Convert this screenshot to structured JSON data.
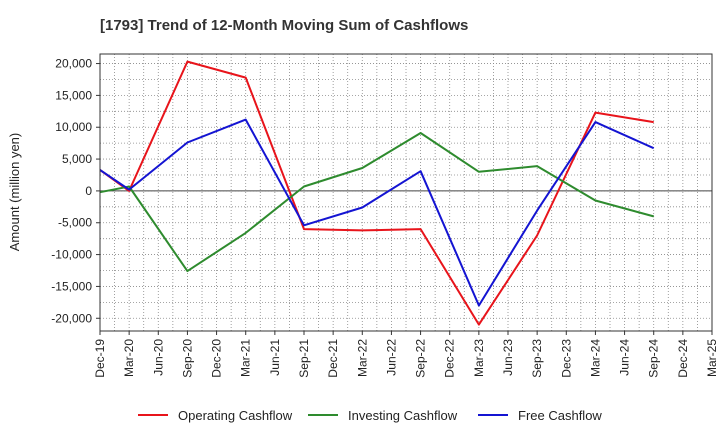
{
  "chart_data": {
    "type": "line",
    "title": "[1793]  Trend of 12-Month Moving Sum of Cashflows",
    "xlabel": "",
    "ylabel": "Amount (million yen)",
    "ylim": [
      -22000,
      21500
    ],
    "yticks": [
      20000,
      15000,
      10000,
      5000,
      0,
      -5000,
      -10000,
      -15000,
      -20000
    ],
    "ytick_labels": [
      "20,000",
      "15,000",
      "10,000",
      "5,000",
      "0",
      "-5,000",
      "-10,000",
      "-15,000",
      "-20,000"
    ],
    "categories": [
      "Dec-19",
      "Mar-20",
      "Jun-20",
      "Sep-20",
      "Dec-20",
      "Mar-21",
      "Jun-21",
      "Sep-21",
      "Dec-21",
      "Mar-22",
      "Jun-22",
      "Sep-22",
      "Dec-22",
      "Mar-23",
      "Jun-23",
      "Sep-23",
      "Dec-23",
      "Mar-24",
      "Jun-24",
      "Sep-24",
      "Dec-24",
      "Mar-25"
    ],
    "grid": true,
    "legend_position": "bottom",
    "series": [
      {
        "name": "Operating Cashflow",
        "color": "#e8141b",
        "values": [
          3300,
          0,
          null,
          20300,
          null,
          17800,
          null,
          -6000,
          null,
          -6200,
          null,
          -6000,
          null,
          -21000,
          null,
          -7000,
          null,
          12300,
          null,
          10800,
          null,
          null
        ]
      },
      {
        "name": "Investing Cashflow",
        "color": "#2e8b2e",
        "values": [
          -200,
          700,
          null,
          -12600,
          null,
          -6600,
          null,
          700,
          null,
          3600,
          null,
          9100,
          null,
          3000,
          null,
          3900,
          null,
          -1500,
          null,
          -4000,
          null,
          null
        ]
      },
      {
        "name": "Free Cashflow",
        "color": "#1414d2",
        "values": [
          3300,
          200,
          null,
          7600,
          null,
          11200,
          null,
          -5400,
          null,
          -2600,
          null,
          3100,
          null,
          -18000,
          null,
          -3100,
          null,
          10800,
          null,
          6700,
          null,
          null
        ]
      }
    ]
  }
}
